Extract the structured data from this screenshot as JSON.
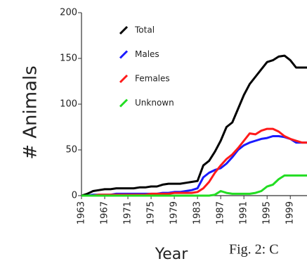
{
  "chart_data": {
    "type": "line",
    "y_label": "# Animals",
    "x_label": "Year",
    "annotation": "Fig. 2: C",
    "x": [
      1963,
      1964,
      1965,
      1966,
      1967,
      1968,
      1969,
      1970,
      1971,
      1972,
      1973,
      1974,
      1975,
      1976,
      1977,
      1978,
      1979,
      1980,
      1981,
      1982,
      1983,
      1984,
      1985,
      1986,
      1987,
      1988,
      1989,
      1990,
      1991,
      1992,
      1993,
      1994,
      1995,
      1996,
      1997,
      1998,
      1999,
      2000,
      2001,
      2002
    ],
    "series": [
      {
        "name": "Total",
        "color": "#000000",
        "values": [
          0,
          2,
          5,
          6,
          7,
          7,
          8,
          8,
          8,
          8,
          9,
          9,
          10,
          10,
          12,
          13,
          13,
          13,
          14,
          15,
          16,
          33,
          38,
          48,
          60,
          75,
          80,
          95,
          110,
          122,
          130,
          138,
          146,
          148,
          152,
          153,
          148,
          140,
          140,
          140
        ]
      },
      {
        "name": "Males",
        "color": "#1a1aff",
        "values": [
          0,
          0,
          1,
          1,
          1,
          1,
          2,
          2,
          2,
          2,
          2,
          2,
          2,
          2,
          3,
          3,
          4,
          4,
          5,
          6,
          8,
          20,
          25,
          28,
          30,
          35,
          42,
          50,
          55,
          58,
          60,
          62,
          63,
          65,
          65,
          64,
          62,
          58,
          58,
          58
        ]
      },
      {
        "name": "Females",
        "color": "#ff1a1a",
        "values": [
          0,
          0,
          0,
          1,
          1,
          1,
          1,
          1,
          1,
          1,
          1,
          1,
          2,
          2,
          2,
          2,
          3,
          3,
          3,
          3,
          4,
          8,
          15,
          25,
          33,
          40,
          45,
          52,
          60,
          68,
          67,
          71,
          73,
          73,
          70,
          65,
          62,
          60,
          58,
          58
        ]
      },
      {
        "name": "Unknown",
        "color": "#22dd22",
        "values": [
          0,
          0,
          0,
          0,
          0,
          0,
          0,
          0,
          0,
          0,
          0,
          0,
          0,
          0,
          0,
          0,
          0,
          0,
          0,
          0,
          0,
          0,
          0,
          1,
          5,
          3,
          2,
          2,
          2,
          2,
          3,
          5,
          10,
          12,
          18,
          22,
          22,
          22,
          22,
          22
        ]
      }
    ],
    "xlim": [
      1963,
      2002
    ],
    "xticks": [
      1963,
      1967,
      1971,
      1975,
      1979,
      1983,
      1987,
      1991,
      1995,
      1999
    ],
    "ylim": [
      0,
      200
    ],
    "yticks": [
      0,
      50,
      100,
      150,
      200
    ]
  }
}
